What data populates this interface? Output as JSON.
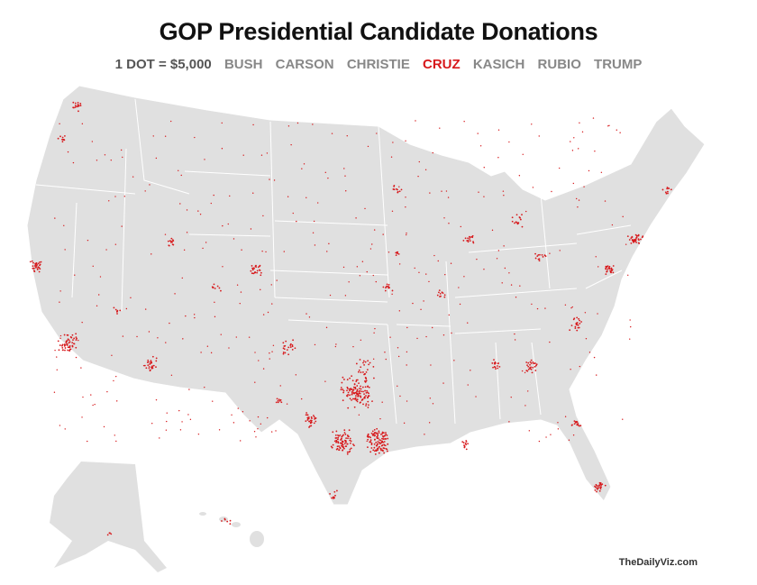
{
  "title": "GOP Presidential Candidate Donations",
  "legend": {
    "scale": "1 DOT = $5,000",
    "candidates": [
      "BUSH",
      "CARSON",
      "CHRISTIE",
      "CRUZ",
      "KASICH",
      "RUBIO",
      "TRUMP"
    ],
    "selected": "CRUZ"
  },
  "colors": {
    "land": "#e0e0e0",
    "border": "#ffffff",
    "dot": "#d7191c",
    "inactive": "#888888"
  },
  "credit": "TheDailyViz.com"
}
